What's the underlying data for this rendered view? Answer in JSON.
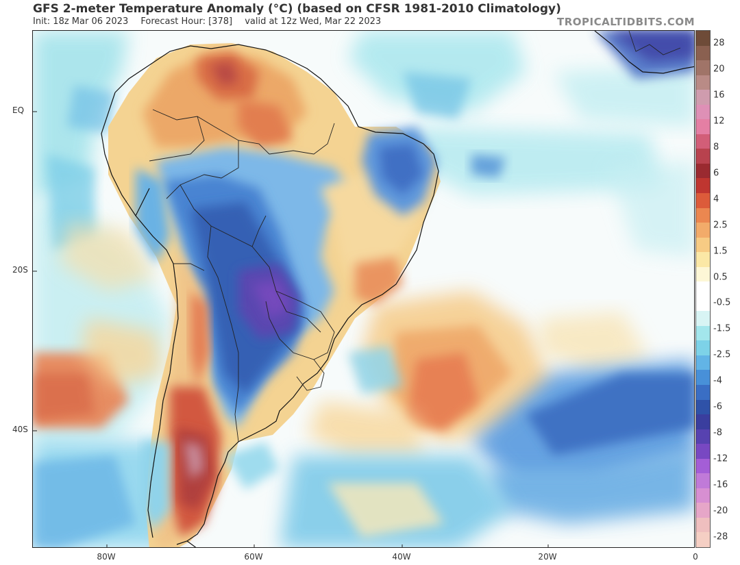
{
  "header": {
    "title": "GFS 2-meter Temperature Anomaly (°C) (based on CFSR 1981-2010 Climatology)",
    "init": "Init: 18z Mar 06 2023",
    "forecast_hour": "Forecast Hour: [378]",
    "valid": "valid at 12z Wed, Mar 22 2023",
    "brand": "TROPICALTIDBITS.COM"
  },
  "axes": {
    "latitude_labels": [
      "EQ",
      "20S",
      "40S"
    ],
    "longitude_labels": [
      "80W",
      "60W",
      "40W",
      "20W",
      "0"
    ]
  },
  "colorbar": {
    "labels": [
      "28",
      "20",
      "16",
      "12",
      "8",
      "6",
      "4",
      "2.5",
      "1.5",
      "0.5",
      "-0.5",
      "-1.5",
      "-2.5",
      "-4",
      "-6",
      "-8",
      "-12",
      "-16",
      "-20",
      "-28"
    ],
    "colors": [
      "#6e4b38",
      "#8a6050",
      "#a07468",
      "#b98b86",
      "#cf9cae",
      "#de90b6",
      "#e47fa4",
      "#d25e78",
      "#b8424e",
      "#9a2a30",
      "#bf3630",
      "#dc5b3a",
      "#eb8750",
      "#f2ab6a",
      "#f7cb84",
      "#fbe8a6",
      "#fdf7d6",
      "#ffffff",
      "#ffffff",
      "#d8f4f4",
      "#a3e6ec",
      "#7dd2e8",
      "#62b4e6",
      "#4890d8",
      "#3a6ec4",
      "#2f52a8",
      "#3a3e9e",
      "#5742b0",
      "#7848c2",
      "#a45ed6",
      "#c07ad8",
      "#d78fd2",
      "#e6a6c8",
      "#efbfbf",
      "#f5cfc4"
    ]
  }
}
